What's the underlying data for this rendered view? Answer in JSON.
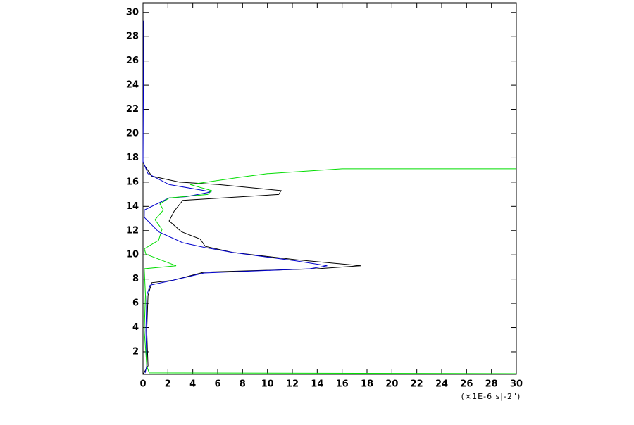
{
  "chart_data": {
    "type": "line",
    "x_label": "(×1E-6 s|-2\")",
    "xlim": [
      0,
      30
    ],
    "ylim": [
      0.14,
      30.8
    ],
    "xticks": [
      0,
      2,
      4,
      6,
      8,
      10,
      12,
      14,
      16,
      18,
      20,
      22,
      24,
      26,
      28,
      30
    ],
    "yticks": [
      2,
      4,
      6,
      8,
      10,
      12,
      14,
      16,
      18,
      20,
      22,
      24,
      26,
      28,
      30
    ],
    "series": [
      {
        "color": "#000000",
        "x": [
          0.11,
          0.7,
          2.94,
          6.06,
          11.1,
          10.9,
          3.2,
          2.5,
          2.1,
          3.1,
          4.6,
          5.0,
          7.2,
          12.3,
          17.5,
          14.0,
          4.9,
          2.4,
          0.7,
          0.4,
          0.3,
          0.4,
          0
        ],
        "y": [
          17.4,
          16.5,
          16.0,
          15.8,
          15.3,
          14.98,
          14.5,
          13.6,
          12.8,
          11.9,
          11.3,
          10.7,
          10.2,
          9.6,
          9.1,
          8.85,
          8.57,
          7.9,
          7.7,
          6.65,
          3.75,
          0.84,
          0.14
        ]
      },
      {
        "color": "#0000cc",
        "x": [
          0.05,
          0.05,
          0,
          0.4,
          2.1,
          5.5,
          3.5,
          2.1,
          0.11,
          0.1,
          1.25,
          3.2,
          5.0,
          7.2,
          12.3,
          14.8,
          13.4,
          4.9,
          2.4,
          0.57,
          0.3,
          0.23,
          0.3,
          0.17
        ],
        "y": [
          29.3,
          27,
          17.7,
          16.7,
          15.8,
          15.2,
          14.8,
          14.7,
          13.7,
          13.1,
          11.9,
          11.0,
          10.6,
          10.2,
          9.5,
          9.1,
          8.85,
          8.5,
          7.9,
          7.5,
          6.65,
          3.75,
          0.84,
          0.25
        ]
      },
      {
        "color": "#00dd00",
        "x": [
          30,
          16,
          10,
          7.75,
          3.8,
          5.5,
          5.2,
          2.1,
          1.36,
          1.64,
          0.96,
          1.53,
          1.25,
          0.11,
          0.23,
          2.66,
          0.1,
          0.2,
          0.1,
          0.3,
          0.5,
          30
        ],
        "y": [
          17.1,
          17.1,
          16.7,
          16.4,
          15.8,
          15.3,
          14.98,
          14.7,
          14.2,
          13.7,
          12.9,
          12.1,
          11.2,
          10.5,
          10.05,
          9.1,
          8.85,
          6.65,
          3.75,
          0.84,
          0.26,
          0.2
        ]
      }
    ]
  }
}
